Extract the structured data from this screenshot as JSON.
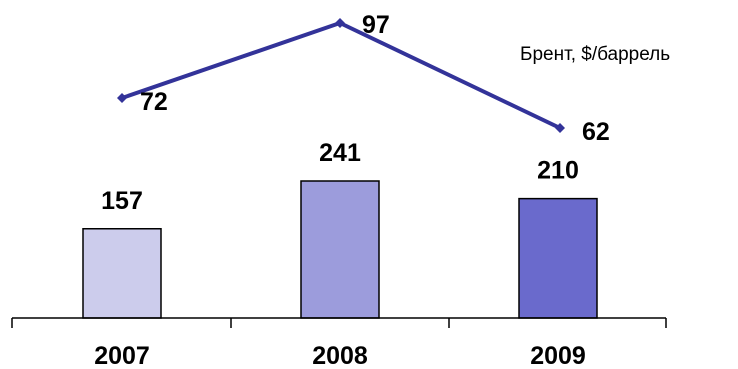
{
  "chart_data": {
    "type": "bar",
    "categories": [
      "2007",
      "2008",
      "2009"
    ],
    "bars": {
      "values": [
        157,
        241,
        210
      ],
      "colors": [
        "#ccccec",
        "#9c9cdc",
        "#6a6acc"
      ],
      "edge_color": "#000000"
    },
    "line": {
      "name": "Брент, $/баррель",
      "values": [
        72,
        97,
        62
      ],
      "color": "#333399"
    },
    "axis_color": "#000000"
  }
}
